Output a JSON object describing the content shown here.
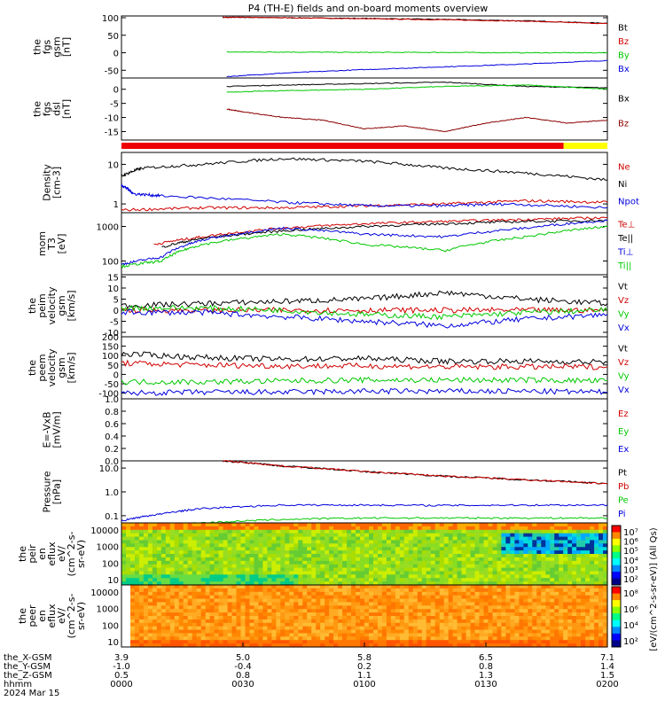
{
  "title": "P4 (TH-E) fields and on-board moments overview",
  "colors": {
    "black": "#000000",
    "red": "#d00000",
    "darkred": "#8b0000",
    "green": "#00c800",
    "blue": "#0000dd",
    "yellow": "#ffff00"
  },
  "chart_data": [
    {
      "type": "line",
      "panel": "fgs_gsm",
      "ylabel": [
        "the",
        "fgs",
        "gsm",
        "[nT]"
      ],
      "yticks": [
        "100",
        "50",
        "0",
        "-50"
      ],
      "ylim": [
        -72,
        105
      ],
      "series": [
        {
          "name": "Bt",
          "color": "#000000",
          "x": [
            25,
            30,
            40,
            60,
            80,
            100,
            120
          ],
          "values": [
            101,
            101,
            100,
            98,
            95,
            91,
            84
          ]
        },
        {
          "name": "Bz",
          "color": "#d00000",
          "x": [
            25,
            30,
            40,
            60,
            80,
            100,
            120
          ],
          "values": [
            101,
            101,
            100,
            97,
            94,
            90,
            83
          ]
        },
        {
          "name": "By",
          "color": "#00c800",
          "x": [
            26,
            40,
            60,
            80,
            100,
            120
          ],
          "values": [
            2,
            2,
            1,
            1,
            0,
            0
          ]
        },
        {
          "name": "Bx",
          "color": "#0000dd",
          "x": [
            26,
            40,
            60,
            80,
            100,
            120
          ],
          "values": [
            -68,
            -58,
            -48,
            -40,
            -32,
            -22
          ]
        }
      ]
    },
    {
      "type": "line",
      "panel": "fgs_dsl",
      "ylabel": [
        "the",
        "fgs",
        "dsl",
        "[nT]"
      ],
      "yticks": [
        "0",
        "-5",
        "-10",
        "-15"
      ],
      "ylim": [
        -18,
        4
      ],
      "series": [
        {
          "name": "Bx",
          "color": "#000000",
          "x": [
            26,
            40,
            60,
            80,
            100,
            120
          ],
          "values": [
            1,
            1.5,
            2,
            2.5,
            1,
            0.5
          ]
        },
        {
          "name": "By",
          "color": "#00c800",
          "x": [
            26,
            40,
            60,
            80,
            100,
            120
          ],
          "values": [
            -1,
            -0.5,
            0,
            1,
            1.5,
            0
          ]
        },
        {
          "name": "Bz",
          "color": "#8b0000",
          "x": [
            26,
            30,
            40,
            50,
            60,
            70,
            80,
            90,
            100,
            110,
            120
          ],
          "values": [
            -7,
            -8,
            -10,
            -11,
            -14,
            -13,
            -15,
            -12,
            -10,
            -12,
            -11
          ]
        }
      ]
    },
    {
      "type": "line",
      "panel": "density",
      "ylabel": [
        "Density",
        "[cm-3]"
      ],
      "yticks": [
        "10",
        "1"
      ],
      "ylim": [
        0.6,
        20
      ],
      "log": true,
      "series": [
        {
          "name": "Ne",
          "color": "#d00000",
          "x": [
            0,
            20,
            40,
            60,
            80,
            100,
            120
          ],
          "values": [
            0.7,
            0.8,
            0.8,
            0.9,
            1.0,
            1.2,
            1.1
          ]
        },
        {
          "name": "Ni",
          "color": "#000000",
          "x": [
            0,
            5,
            20,
            40,
            60,
            80,
            100,
            120
          ],
          "values": [
            5,
            8,
            10,
            14,
            12,
            8,
            6,
            4
          ]
        },
        {
          "name": "Npot",
          "color": "#0000dd",
          "x": [
            0,
            3,
            10,
            40,
            60,
            80,
            95,
            120
          ],
          "values": [
            3,
            1.8,
            1.6,
            1.1,
            0.9,
            0.9,
            1.0,
            0.8
          ]
        }
      ]
    },
    {
      "type": "line",
      "panel": "moments_temp",
      "ylabel": [
        "mom",
        "T3",
        "[eV]"
      ],
      "yticks": [
        "1000",
        "100"
      ],
      "ylim": [
        40,
        2500
      ],
      "log": true,
      "series": [
        {
          "name": "Te⊥",
          "color": "#d00000",
          "x": [
            8,
            20,
            40,
            60,
            80,
            100,
            120
          ],
          "values": [
            300,
            500,
            900,
            1200,
            1400,
            1600,
            1800
          ]
        },
        {
          "name": "Te||",
          "color": "#000000",
          "x": [
            10,
            20,
            40,
            60,
            80,
            100,
            120
          ],
          "values": [
            250,
            450,
            750,
            1000,
            1200,
            1400,
            1500
          ]
        },
        {
          "name": "Ti⊥",
          "color": "#0000dd",
          "x": [
            0,
            10,
            20,
            40,
            60,
            80,
            100,
            120
          ],
          "values": [
            80,
            130,
            400,
            900,
            600,
            500,
            900,
            1500
          ]
        },
        {
          "name": "Ti||",
          "color": "#00c800",
          "x": [
            0,
            10,
            20,
            40,
            60,
            80,
            100,
            120
          ],
          "values": [
            70,
            100,
            300,
            600,
            300,
            200,
            500,
            1000
          ]
        }
      ]
    },
    {
      "type": "line",
      "panel": "peim_velocity",
      "ylabel": [
        "the",
        "peim",
        "velocity",
        "gsm",
        "[km/s]"
      ],
      "yticks": [
        "15",
        "10",
        "5",
        "0",
        "-5",
        "-10"
      ],
      "ylim": [
        -12,
        16
      ],
      "series": [
        {
          "name": "Vt",
          "color": "#000000",
          "x": [
            0,
            20,
            40,
            60,
            80,
            100,
            120
          ],
          "values": [
            2,
            3,
            4,
            5,
            8,
            5,
            3
          ]
        },
        {
          "name": "Vz",
          "color": "#d00000",
          "x": [
            0,
            20,
            40,
            60,
            80,
            100,
            120
          ],
          "values": [
            0,
            0,
            0,
            0,
            0,
            0,
            0
          ]
        },
        {
          "name": "Vy",
          "color": "#00c800",
          "x": [
            0,
            20,
            40,
            60,
            80,
            100,
            120
          ],
          "values": [
            1,
            1,
            0,
            -2,
            -3,
            -1,
            0
          ]
        },
        {
          "name": "Vx",
          "color": "#0000dd",
          "x": [
            0,
            20,
            40,
            60,
            80,
            100,
            120
          ],
          "values": [
            -1,
            -1,
            -3,
            -5,
            -7,
            -4,
            -2
          ]
        }
      ]
    },
    {
      "type": "line",
      "panel": "peem_velocity",
      "ylabel": [
        "the",
        "peem",
        "velocity",
        "gsm",
        "[km/s]"
      ],
      "yticks": [
        "200",
        "150",
        "100",
        "50",
        "0",
        "-50",
        "-100"
      ],
      "ylim": [
        -130,
        200
      ],
      "series": [
        {
          "name": "Vt",
          "color": "#000000",
          "x": [
            0,
            20,
            40,
            60,
            80,
            100,
            120
          ],
          "values": [
            110,
            90,
            80,
            85,
            70,
            70,
            65
          ]
        },
        {
          "name": "Vz",
          "color": "#d00000",
          "x": [
            0,
            20,
            40,
            60,
            80,
            100,
            120
          ],
          "values": [
            60,
            50,
            45,
            45,
            40,
            40,
            40
          ]
        },
        {
          "name": "Vy",
          "color": "#00c800",
          "x": [
            0,
            20,
            40,
            60,
            80,
            100,
            120
          ],
          "values": [
            -40,
            -40,
            -35,
            -30,
            -30,
            -30,
            -35
          ]
        },
        {
          "name": "Vx",
          "color": "#0000dd",
          "x": [
            0,
            20,
            40,
            60,
            80,
            100,
            120
          ],
          "values": [
            -100,
            -95,
            -95,
            -90,
            -90,
            -90,
            -95
          ]
        }
      ]
    },
    {
      "type": "line",
      "panel": "efield",
      "ylabel": [
        "E=-VxB",
        "[mV/m]"
      ],
      "yticks": [
        "1.0",
        "0.8",
        "0.6",
        "0.4",
        "0.2",
        "0.0"
      ],
      "ylim": [
        0,
        1
      ],
      "series": [
        {
          "name": "Ez",
          "color": "#d00000",
          "x": [],
          "values": []
        },
        {
          "name": "Ey",
          "color": "#00c800",
          "x": [],
          "values": []
        },
        {
          "name": "Ex",
          "color": "#0000dd",
          "x": [],
          "values": []
        }
      ]
    },
    {
      "type": "line",
      "panel": "pressure",
      "ylabel": [
        "Pressure",
        "[nPa]"
      ],
      "yticks": [
        "10.0",
        "1.0",
        "0.1"
      ],
      "ylim": [
        0.05,
        20
      ],
      "log": true,
      "series": [
        {
          "name": "Pt",
          "color": "#000000",
          "x": [
            25,
            40,
            60,
            80,
            100,
            120
          ],
          "values": [
            20,
            12,
            7,
            4.5,
            3.2,
            2.2
          ]
        },
        {
          "name": "Pb",
          "color": "#d00000",
          "x": [
            25,
            40,
            60,
            80,
            100,
            120
          ],
          "values": [
            20,
            12,
            7,
            4.5,
            3.2,
            2.2
          ]
        },
        {
          "name": "Pe",
          "color": "#00c800",
          "x": [
            0,
            20,
            40,
            60,
            80,
            100,
            120
          ],
          "values": [
            0.03,
            0.05,
            0.07,
            0.08,
            0.08,
            0.08,
            0.08
          ]
        },
        {
          "name": "Pi",
          "color": "#0000dd",
          "x": [
            0,
            10,
            20,
            40,
            60,
            80,
            100,
            120
          ],
          "values": [
            0.06,
            0.12,
            0.2,
            0.28,
            0.28,
            0.27,
            0.28,
            0.28
          ]
        }
      ]
    },
    {
      "type": "heatmap",
      "panel": "peir_eflux",
      "ylabel": [
        "the",
        "peir",
        "en",
        "eflux",
        "eV/",
        "(cm^2-s-",
        "sr-eV)"
      ],
      "yticks": [
        "10000",
        "1000",
        "100",
        "10"
      ]
    },
    {
      "type": "heatmap",
      "panel": "peer_eflux",
      "ylabel": [
        "the",
        "peer",
        "en",
        "eflux",
        "eV/",
        "(cm^2-s-",
        "sr-eV)"
      ],
      "yticks": [
        "10000",
        "1000",
        "100",
        "10"
      ]
    }
  ],
  "legends": {
    "fgs_gsm": [
      "Bt",
      "Bz",
      "By",
      "Bx"
    ],
    "fgs_dsl": [
      "Bx",
      "Bz"
    ],
    "density": [
      "Ne",
      "Ni",
      "Npot"
    ],
    "moments_temp": [
      "Te⊥",
      "Te||",
      "Ti⊥",
      "Ti||"
    ],
    "peim_velocity": [
      "Vt",
      "Vz",
      "Vy",
      "Vx"
    ],
    "peem_velocity": [
      "Vt",
      "Vz",
      "Vy",
      "Vx"
    ],
    "efield": [
      "Ez",
      "Ey",
      "Ex"
    ],
    "pressure": [
      "Pt",
      "Pb",
      "Pe",
      "Pi"
    ]
  },
  "colorbar": {
    "label": "[eV/(cm^2-s-sr-eV)] (All Qs)",
    "ticks_ion": [
      "10⁷",
      "10⁶",
      "10⁵",
      "10⁴",
      "10³",
      "10²"
    ],
    "ticks_elec": [
      "10⁸",
      "10⁶",
      "10⁴",
      "10²"
    ]
  },
  "xaxis": {
    "rows": [
      {
        "label": "the_X-GSM",
        "ticks": [
          "3.9",
          "5.0",
          "5.8",
          "6.5",
          "7.1"
        ]
      },
      {
        "label": "the_Y-GSM",
        "ticks": [
          "-1.0",
          "-0.4",
          "0.2",
          "0.8",
          "1.4"
        ]
      },
      {
        "label": "the_Z-GSM",
        "ticks": [
          "0.5",
          "0.8",
          "1.1",
          "1.3",
          "1.5"
        ]
      },
      {
        "label": "hhmm",
        "ticks": [
          "0000",
          "0030",
          "0100",
          "0130",
          "0200"
        ]
      }
    ],
    "date": "2024 Mar 15"
  }
}
